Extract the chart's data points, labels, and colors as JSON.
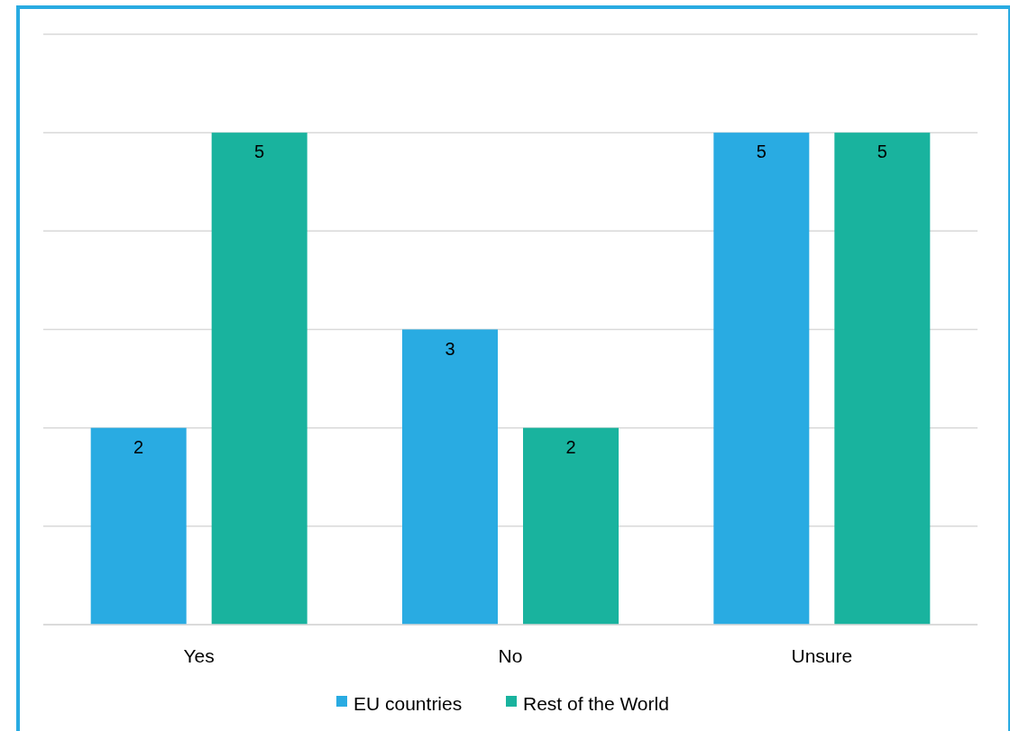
{
  "chart_data": {
    "type": "bar",
    "categories": [
      "Yes",
      "No",
      "Unsure"
    ],
    "series": [
      {
        "name": "EU countries",
        "color": "#29abe2",
        "values": [
          2,
          3,
          5
        ]
      },
      {
        "name": "Rest of the World",
        "color": "#19b39e",
        "values": [
          5,
          2,
          5
        ]
      }
    ],
    "ylim": [
      0,
      6
    ],
    "yticks": [
      {
        "value": 0,
        "label": null
      },
      {
        "value": 1,
        "label": null
      },
      {
        "value": 2,
        "label": null
      },
      {
        "value": 3,
        "label": null
      },
      {
        "value": 4,
        "label": null
      },
      {
        "value": 5,
        "label": null
      },
      {
        "value": 6,
        "label": null
      }
    ],
    "tick_labels": "x",
    "grid": "y",
    "legend": "bottom",
    "data_labels": true
  }
}
